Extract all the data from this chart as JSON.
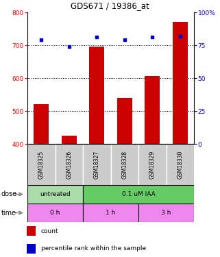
{
  "title": "GDS671 / 19386_at",
  "samples": [
    "GSM18325",
    "GSM18326",
    "GSM18327",
    "GSM18328",
    "GSM18329",
    "GSM18330"
  ],
  "bar_values": [
    520,
    425,
    695,
    540,
    607,
    770
  ],
  "bar_bottom": 400,
  "percentile_values": [
    79,
    74,
    81,
    79,
    81,
    82
  ],
  "bar_color": "#cc0000",
  "dot_color": "#0000cc",
  "ylim_left": [
    400,
    800
  ],
  "ylim_right": [
    0,
    100
  ],
  "yticks_left": [
    400,
    500,
    600,
    700,
    800
  ],
  "yticks_right": [
    0,
    25,
    50,
    75,
    100
  ],
  "right_tick_labels": [
    "0",
    "25",
    "50",
    "75",
    "100%"
  ],
  "dose_untreated_color": "#aaddaa",
  "dose_treated_color": "#66cc66",
  "time_color": "#ee88ee",
  "sample_bg_color": "#cccccc",
  "bar_width": 0.55,
  "gridline_yticks": [
    500,
    600,
    700
  ],
  "dose_row": [
    [
      "untreated",
      0,
      2,
      "#aaddaa"
    ],
    [
      "0.1 uM IAA",
      2,
      6,
      "#66cc66"
    ]
  ],
  "time_row": [
    [
      "0 h",
      0,
      2,
      "#ee88ee"
    ],
    [
      "1 h",
      2,
      4,
      "#ee88ee"
    ],
    [
      "3 h",
      4,
      6,
      "#ee88ee"
    ]
  ]
}
